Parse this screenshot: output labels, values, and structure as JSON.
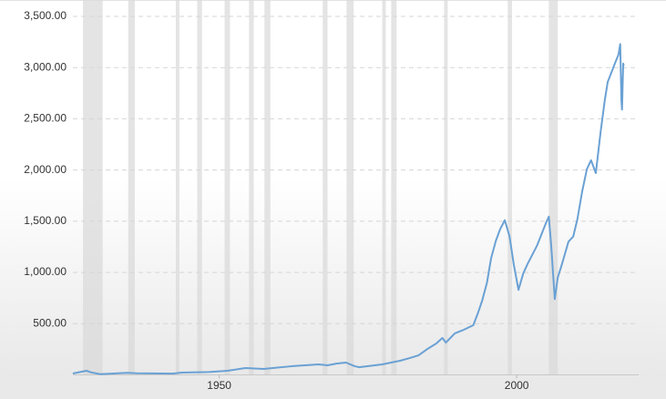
{
  "chart_data": {
    "type": "line",
    "xlim": [
      1925.4,
      2020.5
    ],
    "ylim": [
      0,
      3500
    ],
    "xticks": [
      1950,
      2000
    ],
    "yticks": [
      {
        "value": 500,
        "label": "500.00"
      },
      {
        "value": 1000,
        "label": "1,000.00"
      },
      {
        "value": 1500,
        "label": "1,500.00"
      },
      {
        "value": 2000,
        "label": "2,000.00"
      },
      {
        "value": 2500,
        "label": "2,500.00"
      },
      {
        "value": 3000,
        "label": "3,000.00"
      },
      {
        "value": 3500,
        "label": "3,500.00"
      }
    ],
    "grid": true,
    "shaded_color": "#d9d9d9",
    "shaded_periods": [
      [
        1927.1,
        1930.4
      ],
      [
        1934.7,
        1935.8
      ],
      [
        1942.7,
        1943.3
      ],
      [
        1946.3,
        1947.1
      ],
      [
        1950.9,
        1951.8
      ],
      [
        1955.0,
        1955.8
      ],
      [
        1957.6,
        1958.6
      ],
      [
        1967.4,
        1968.2
      ],
      [
        1971.4,
        1972.6
      ],
      [
        1977.4,
        1978.0
      ],
      [
        1978.9,
        1979.8
      ],
      [
        1987.8,
        1988.4
      ],
      [
        1998.5,
        1999.2
      ],
      [
        2005.4,
        2006.9
      ]
    ],
    "series": [
      {
        "color": "#6aa1d4",
        "x": [
          1925.4,
          1926.9,
          1927.7,
          1928.4,
          1930.0,
          1934.6,
          1936.1,
          1942.2,
          1943.7,
          1948.3,
          1951.4,
          1954.4,
          1957.5,
          1959.0,
          1962.1,
          1966.7,
          1968.2,
          1969.7,
          1971.3,
          1972.8,
          1973.5,
          1977.4,
          1980.4,
          1982.0,
          1983.5,
          1985.0,
          1986.5,
          1987.5,
          1988.1,
          1989.6,
          1991.1,
          1992.7,
          1993.4,
          1994.2,
          1995.0,
          1995.7,
          1996.5,
          1997.2,
          1998.0,
          1998.8,
          1999.5,
          2000.3,
          2001.1,
          2001.8,
          2003.4,
          2004.9,
          2005.4,
          2005.8,
          2006.4,
          2006.9,
          2007.6,
          2008.7,
          2009.5,
          2010.2,
          2011.0,
          2011.8,
          2012.5,
          2013.3,
          2014.1,
          2014.8,
          2015.3,
          2015.9,
          2016.5,
          2017.1,
          2017.4,
          2017.6,
          2017.7,
          2017.9,
          2018.0
        ],
        "values": [
          13,
          31,
          40,
          25,
          7,
          20,
          15,
          12,
          22,
          28,
          40,
          67,
          58,
          67,
          84,
          102,
          93,
          110,
          120,
          84,
          75,
          102,
          138,
          164,
          191,
          253,
          307,
          360,
          315,
          405,
          440,
          485,
          590,
          725,
          900,
          1140,
          1310,
          1420,
          1510,
          1350,
          1080,
          830,
          990,
          1080,
          1260,
          1480,
          1545,
          1260,
          740,
          950,
          1080,
          1300,
          1350,
          1520,
          1790,
          2010,
          2095,
          1970,
          2370,
          2680,
          2860,
          2950,
          3040,
          3125,
          3230,
          2680,
          2590,
          3040,
          3020
        ]
      }
    ]
  }
}
